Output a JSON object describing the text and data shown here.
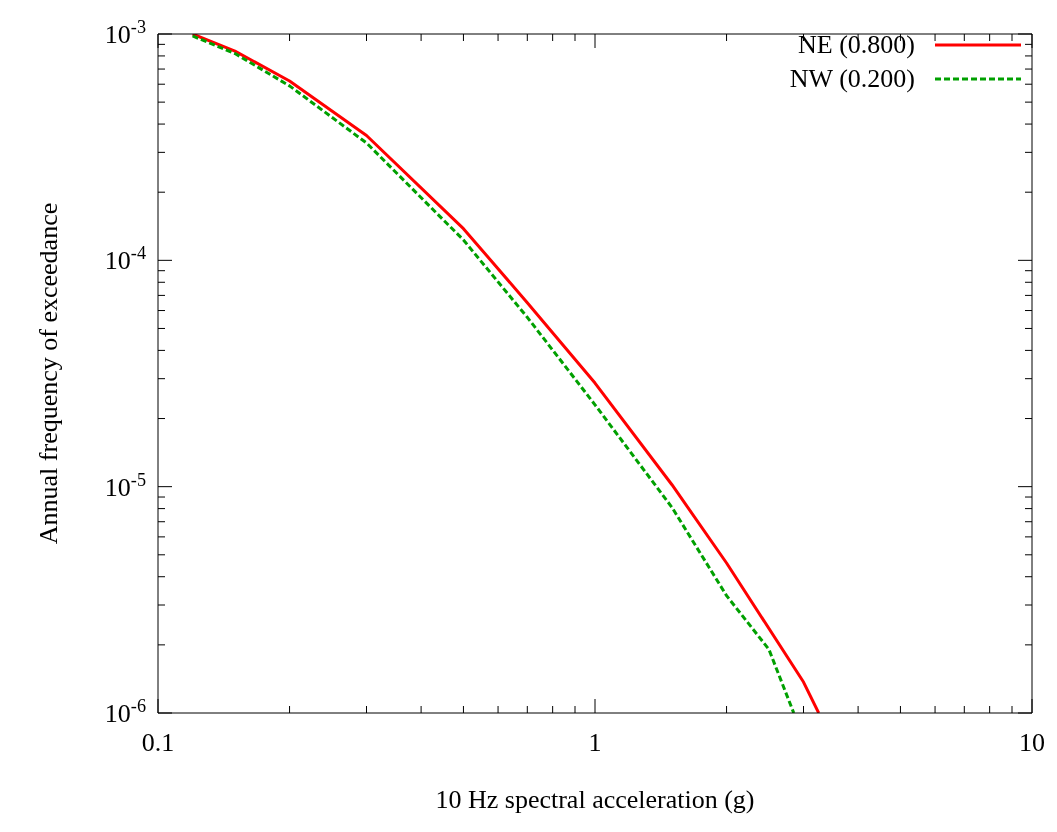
{
  "chart_data": {
    "type": "line",
    "xlabel": "10 Hz spectral acceleration (g)",
    "ylabel": "Annual frequency of exceedance",
    "log": "xy",
    "xlim": [
      0.1,
      10
    ],
    "ylim": [
      1e-06,
      0.001
    ],
    "xticks": [
      0.1,
      {
        "value": 0.2,
        "label": null
      },
      {
        "value": 0.3,
        "label": null
      },
      {
        "value": 0.4,
        "label": null
      },
      {
        "value": 0.5,
        "label": null
      },
      {
        "value": 0.6,
        "label": null
      },
      {
        "value": 0.7,
        "label": null
      },
      {
        "value": 0.8,
        "label": null
      },
      {
        "value": 0.9,
        "label": null
      },
      1,
      {
        "value": 2,
        "label": null
      },
      {
        "value": 3,
        "label": null
      },
      {
        "value": 4,
        "label": null
      },
      {
        "value": 5,
        "label": null
      },
      {
        "value": 6,
        "label": null
      },
      {
        "value": 7,
        "label": null
      },
      {
        "value": 8,
        "label": null
      },
      {
        "value": 9,
        "label": null
      },
      10
    ],
    "yticks": [
      {
        "value": 1e-06,
        "label": "10$^{-6}$"
      },
      {
        "value": 2e-06,
        "label": null
      },
      {
        "value": 3e-06,
        "label": null
      },
      {
        "value": 4e-06,
        "label": null
      },
      {
        "value": 5e-06,
        "label": null
      },
      {
        "value": 6e-06,
        "label": null
      },
      {
        "value": 7e-06,
        "label": null
      },
      {
        "value": 8e-06,
        "label": null
      },
      {
        "value": 9e-06,
        "label": null
      },
      {
        "value": 1e-05,
        "label": "10$^{-5}$"
      },
      {
        "value": 2e-05,
        "label": null
      },
      {
        "value": 3e-05,
        "label": null
      },
      {
        "value": 4e-05,
        "label": null
      },
      {
        "value": 5e-05,
        "label": null
      },
      {
        "value": 6e-05,
        "label": null
      },
      {
        "value": 7e-05,
        "label": null
      },
      {
        "value": 8e-05,
        "label": null
      },
      {
        "value": 9e-05,
        "label": null
      },
      {
        "value": 0.0001,
        "label": "10$^{-4}$"
      },
      {
        "value": 0.0002,
        "label": null
      },
      {
        "value": 0.0003,
        "label": null
      },
      {
        "value": 0.0004,
        "label": null
      },
      {
        "value": 0.0005,
        "label": null
      },
      {
        "value": 0.0006,
        "label": null
      },
      {
        "value": 0.0007,
        "label": null
      },
      {
        "value": 0.0008,
        "label": null
      },
      {
        "value": 0.0009,
        "label": null
      },
      {
        "value": 0.001,
        "label": "10$^{-3}$"
      }
    ],
    "legend": "top right",
    "marker": "none",
    "series": [
      {
        "name": "NE (0.800)",
        "color": "#ff0000",
        "line_style": "solid",
        "x": [
          0.12,
          0.15,
          0.2,
          0.3,
          0.5,
          0.7,
          1.0,
          1.5,
          2.0,
          3.0,
          3.25
        ],
        "values": [
          0.001,
          0.00084,
          0.00062,
          0.000356,
          0.000138,
          6.5e-05,
          2.87e-05,
          1.02e-05,
          4.6e-06,
          1.37e-06,
          1e-06
        ]
      },
      {
        "name": "NW (0.200)",
        "color": "#00a000",
        "line_style": "dashed",
        "x": [
          0.12,
          0.15,
          0.2,
          0.3,
          0.5,
          0.7,
          1.0,
          1.5,
          2.0,
          2.5,
          2.85
        ],
        "values": [
          0.00098,
          0.00082,
          0.00059,
          0.00033,
          0.000123,
          5.6e-05,
          2.3e-05,
          8.1e-06,
          3.3e-06,
          1.91e-06,
          1e-06
        ]
      }
    ]
  }
}
